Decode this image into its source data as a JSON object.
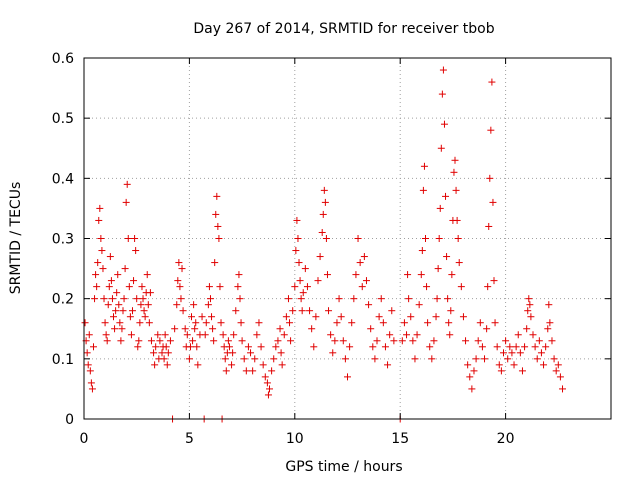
{
  "chart_data": {
    "type": "scatter",
    "title": "Day 267 of 2014, SRMTID for receiver tbob",
    "xlabel": "GPS time / hours",
    "ylabel": "SRMTID / TECUs",
    "xlim": [
      0,
      25
    ],
    "ylim": [
      0,
      0.6
    ],
    "xticks": [
      0,
      5,
      10,
      15,
      20
    ],
    "xtick_labels": [
      "0",
      "5",
      "10",
      "15",
      "20"
    ],
    "yticks": [
      0,
      0.1,
      0.2,
      0.3,
      0.4,
      0.5,
      0.6
    ],
    "ytick_labels": [
      "0",
      "0.1",
      "0.2",
      "0.3",
      "0.4",
      "0.5",
      "0.6"
    ],
    "grid": true,
    "marker": "plus",
    "color": "#e00000",
    "series": [
      {
        "name": "SRMTID",
        "points": [
          [
            0.05,
            0.16
          ],
          [
            0.1,
            0.13
          ],
          [
            0.15,
            0.11
          ],
          [
            0.2,
            0.09
          ],
          [
            0.25,
            0.14
          ],
          [
            0.3,
            0.08
          ],
          [
            0.35,
            0.06
          ],
          [
            0.4,
            0.05
          ],
          [
            0.45,
            0.12
          ],
          [
            0.5,
            0.2
          ],
          [
            0.55,
            0.24
          ],
          [
            0.6,
            0.22
          ],
          [
            0.65,
            0.26
          ],
          [
            0.7,
            0.33
          ],
          [
            0.75,
            0.35
          ],
          [
            0.8,
            0.3
          ],
          [
            0.85,
            0.28
          ],
          [
            0.9,
            0.25
          ],
          [
            0.95,
            0.2
          ],
          [
            1.0,
            0.16
          ],
          [
            1.05,
            0.14
          ],
          [
            1.1,
            0.13
          ],
          [
            1.15,
            0.19
          ],
          [
            1.2,
            0.22
          ],
          [
            1.25,
            0.27
          ],
          [
            1.3,
            0.23
          ],
          [
            1.35,
            0.2
          ],
          [
            1.4,
            0.17
          ],
          [
            1.45,
            0.15
          ],
          [
            1.5,
            0.18
          ],
          [
            1.55,
            0.21
          ],
          [
            1.6,
            0.24
          ],
          [
            1.65,
            0.19
          ],
          [
            1.7,
            0.16
          ],
          [
            1.75,
            0.13
          ],
          [
            1.8,
            0.15
          ],
          [
            1.85,
            0.18
          ],
          [
            1.9,
            0.2
          ],
          [
            1.95,
            0.25
          ],
          [
            2.0,
            0.36
          ],
          [
            2.05,
            0.39
          ],
          [
            2.1,
            0.3
          ],
          [
            2.15,
            0.22
          ],
          [
            2.2,
            0.17
          ],
          [
            2.25,
            0.14
          ],
          [
            2.3,
            0.18
          ],
          [
            2.35,
            0.23
          ],
          [
            2.4,
            0.3
          ],
          [
            2.45,
            0.28
          ],
          [
            2.5,
            0.2
          ],
          [
            2.55,
            0.12
          ],
          [
            2.6,
            0.13
          ],
          [
            2.65,
            0.16
          ],
          [
            2.7,
            0.19
          ],
          [
            2.75,
            0.22
          ],
          [
            2.8,
            0.2
          ],
          [
            2.85,
            0.18
          ],
          [
            2.9,
            0.17
          ],
          [
            2.95,
            0.21
          ],
          [
            3.0,
            0.24
          ],
          [
            3.05,
            0.19
          ],
          [
            3.1,
            0.16
          ],
          [
            3.15,
            0.21
          ],
          [
            3.2,
            0.13
          ],
          [
            3.3,
            0.11
          ],
          [
            3.35,
            0.09
          ],
          [
            3.4,
            0.12
          ],
          [
            3.5,
            0.14
          ],
          [
            3.55,
            0.1
          ],
          [
            3.6,
            0.13
          ],
          [
            3.7,
            0.11
          ],
          [
            3.75,
            0.12
          ],
          [
            3.8,
            0.1
          ],
          [
            3.85,
            0.14
          ],
          [
            3.9,
            0.12
          ],
          [
            3.95,
            0.09
          ],
          [
            4.0,
            0.11
          ],
          [
            4.1,
            0.13
          ],
          [
            4.2,
            0.0
          ],
          [
            4.3,
            0.15
          ],
          [
            4.4,
            0.19
          ],
          [
            4.45,
            0.23
          ],
          [
            4.5,
            0.26
          ],
          [
            4.55,
            0.22
          ],
          [
            4.6,
            0.2
          ],
          [
            4.65,
            0.25
          ],
          [
            4.7,
            0.18
          ],
          [
            4.8,
            0.15
          ],
          [
            4.85,
            0.12
          ],
          [
            4.9,
            0.14
          ],
          [
            5.0,
            0.1
          ],
          [
            5.05,
            0.12
          ],
          [
            5.1,
            0.17
          ],
          [
            5.15,
            0.13
          ],
          [
            5.2,
            0.19
          ],
          [
            5.25,
            0.15
          ],
          [
            5.3,
            0.16
          ],
          [
            5.35,
            0.12
          ],
          [
            5.4,
            0.09
          ],
          [
            5.5,
            0.14
          ],
          [
            5.6,
            0.17
          ],
          [
            5.7,
            0.0
          ],
          [
            5.75,
            0.14
          ],
          [
            5.8,
            0.16
          ],
          [
            5.9,
            0.19
          ],
          [
            5.95,
            0.22
          ],
          [
            6.0,
            0.2
          ],
          [
            6.05,
            0.17
          ],
          [
            6.1,
            0.15
          ],
          [
            6.15,
            0.13
          ],
          [
            6.2,
            0.26
          ],
          [
            6.25,
            0.34
          ],
          [
            6.3,
            0.37
          ],
          [
            6.35,
            0.32
          ],
          [
            6.4,
            0.3
          ],
          [
            6.45,
            0.22
          ],
          [
            6.5,
            0.16
          ],
          [
            6.55,
            0.0
          ],
          [
            6.6,
            0.14
          ],
          [
            6.65,
            0.12
          ],
          [
            6.7,
            0.1
          ],
          [
            6.75,
            0.08
          ],
          [
            6.8,
            0.11
          ],
          [
            6.85,
            0.13
          ],
          [
            6.9,
            0.12
          ],
          [
            7.0,
            0.09
          ],
          [
            7.05,
            0.11
          ],
          [
            7.1,
            0.14
          ],
          [
            7.2,
            0.18
          ],
          [
            7.3,
            0.22
          ],
          [
            7.35,
            0.24
          ],
          [
            7.4,
            0.2
          ],
          [
            7.45,
            0.16
          ],
          [
            7.5,
            0.13
          ],
          [
            7.6,
            0.1
          ],
          [
            7.7,
            0.08
          ],
          [
            7.8,
            0.12
          ],
          [
            7.9,
            0.11
          ],
          [
            8.0,
            0.08
          ],
          [
            8.1,
            0.1
          ],
          [
            8.2,
            0.14
          ],
          [
            8.3,
            0.16
          ],
          [
            8.4,
            0.12
          ],
          [
            8.5,
            0.09
          ],
          [
            8.6,
            0.07
          ],
          [
            8.7,
            0.06
          ],
          [
            8.75,
            0.04
          ],
          [
            8.8,
            0.05
          ],
          [
            8.9,
            0.08
          ],
          [
            9.0,
            0.1
          ],
          [
            9.1,
            0.12
          ],
          [
            9.2,
            0.13
          ],
          [
            9.3,
            0.15
          ],
          [
            9.35,
            0.11
          ],
          [
            9.4,
            0.09
          ],
          [
            9.5,
            0.14
          ],
          [
            9.6,
            0.17
          ],
          [
            9.7,
            0.2
          ],
          [
            9.75,
            0.16
          ],
          [
            9.8,
            0.13
          ],
          [
            9.9,
            0.18
          ],
          [
            10.0,
            0.22
          ],
          [
            10.05,
            0.28
          ],
          [
            10.1,
            0.33
          ],
          [
            10.15,
            0.3
          ],
          [
            10.2,
            0.26
          ],
          [
            10.25,
            0.23
          ],
          [
            10.3,
            0.2
          ],
          [
            10.35,
            0.18
          ],
          [
            10.4,
            0.21
          ],
          [
            10.5,
            0.25
          ],
          [
            10.6,
            0.22
          ],
          [
            10.7,
            0.18
          ],
          [
            10.8,
            0.15
          ],
          [
            10.9,
            0.12
          ],
          [
            11.0,
            0.17
          ],
          [
            11.1,
            0.23
          ],
          [
            11.2,
            0.27
          ],
          [
            11.3,
            0.31
          ],
          [
            11.35,
            0.34
          ],
          [
            11.4,
            0.38
          ],
          [
            11.45,
            0.36
          ],
          [
            11.5,
            0.3
          ],
          [
            11.55,
            0.24
          ],
          [
            11.6,
            0.18
          ],
          [
            11.7,
            0.14
          ],
          [
            11.8,
            0.11
          ],
          [
            11.9,
            0.13
          ],
          [
            12.0,
            0.16
          ],
          [
            12.1,
            0.2
          ],
          [
            12.2,
            0.17
          ],
          [
            12.3,
            0.13
          ],
          [
            12.4,
            0.1
          ],
          [
            12.5,
            0.07
          ],
          [
            12.6,
            0.12
          ],
          [
            12.7,
            0.16
          ],
          [
            12.8,
            0.2
          ],
          [
            12.9,
            0.24
          ],
          [
            13.0,
            0.3
          ],
          [
            13.1,
            0.26
          ],
          [
            13.2,
            0.22
          ],
          [
            13.3,
            0.27
          ],
          [
            13.4,
            0.23
          ],
          [
            13.5,
            0.19
          ],
          [
            13.6,
            0.15
          ],
          [
            13.7,
            0.12
          ],
          [
            13.8,
            0.1
          ],
          [
            13.9,
            0.13
          ],
          [
            14.0,
            0.17
          ],
          [
            14.1,
            0.2
          ],
          [
            14.2,
            0.16
          ],
          [
            14.3,
            0.12
          ],
          [
            14.4,
            0.09
          ],
          [
            14.5,
            0.14
          ],
          [
            14.6,
            0.18
          ],
          [
            14.7,
            0.13
          ],
          [
            15.0,
            0.0
          ],
          [
            15.1,
            0.13
          ],
          [
            15.2,
            0.16
          ],
          [
            15.3,
            0.14
          ],
          [
            15.35,
            0.24
          ],
          [
            15.4,
            0.2
          ],
          [
            15.5,
            0.17
          ],
          [
            15.6,
            0.13
          ],
          [
            15.7,
            0.1
          ],
          [
            15.8,
            0.14
          ],
          [
            15.9,
            0.19
          ],
          [
            16.0,
            0.24
          ],
          [
            16.05,
            0.28
          ],
          [
            16.1,
            0.38
          ],
          [
            16.15,
            0.42
          ],
          [
            16.2,
            0.3
          ],
          [
            16.25,
            0.22
          ],
          [
            16.3,
            0.16
          ],
          [
            16.4,
            0.12
          ],
          [
            16.5,
            0.1
          ],
          [
            16.6,
            0.13
          ],
          [
            16.7,
            0.17
          ],
          [
            16.75,
            0.2
          ],
          [
            16.8,
            0.25
          ],
          [
            16.85,
            0.3
          ],
          [
            16.9,
            0.35
          ],
          [
            16.95,
            0.45
          ],
          [
            17.0,
            0.54
          ],
          [
            17.05,
            0.58
          ],
          [
            17.1,
            0.49
          ],
          [
            17.15,
            0.37
          ],
          [
            17.2,
            0.27
          ],
          [
            17.25,
            0.2
          ],
          [
            17.3,
            0.16
          ],
          [
            17.35,
            0.14
          ],
          [
            17.4,
            0.18
          ],
          [
            17.45,
            0.24
          ],
          [
            17.5,
            0.33
          ],
          [
            17.55,
            0.41
          ],
          [
            17.6,
            0.43
          ],
          [
            17.65,
            0.38
          ],
          [
            17.7,
            0.33
          ],
          [
            17.75,
            0.3
          ],
          [
            17.8,
            0.26
          ],
          [
            17.9,
            0.22
          ],
          [
            18.0,
            0.17
          ],
          [
            18.1,
            0.13
          ],
          [
            18.2,
            0.09
          ],
          [
            18.3,
            0.07
          ],
          [
            18.4,
            0.05
          ],
          [
            18.5,
            0.08
          ],
          [
            18.6,
            0.1
          ],
          [
            18.7,
            0.13
          ],
          [
            18.8,
            0.16
          ],
          [
            18.9,
            0.12
          ],
          [
            19.0,
            0.1
          ],
          [
            19.1,
            0.15
          ],
          [
            19.15,
            0.22
          ],
          [
            19.2,
            0.32
          ],
          [
            19.25,
            0.4
          ],
          [
            19.3,
            0.48
          ],
          [
            19.35,
            0.56
          ],
          [
            19.4,
            0.36
          ],
          [
            19.45,
            0.23
          ],
          [
            19.5,
            0.16
          ],
          [
            19.6,
            0.12
          ],
          [
            19.7,
            0.09
          ],
          [
            19.8,
            0.08
          ],
          [
            19.9,
            0.11
          ],
          [
            20.0,
            0.13
          ],
          [
            20.1,
            0.1
          ],
          [
            20.2,
            0.12
          ],
          [
            20.3,
            0.11
          ],
          [
            20.4,
            0.09
          ],
          [
            20.5,
            0.12
          ],
          [
            20.6,
            0.14
          ],
          [
            20.7,
            0.11
          ],
          [
            20.8,
            0.08
          ],
          [
            20.9,
            0.12
          ],
          [
            21.0,
            0.15
          ],
          [
            21.05,
            0.18
          ],
          [
            21.1,
            0.2
          ],
          [
            21.15,
            0.19
          ],
          [
            21.2,
            0.17
          ],
          [
            21.3,
            0.14
          ],
          [
            21.4,
            0.12
          ],
          [
            21.5,
            0.1
          ],
          [
            21.6,
            0.13
          ],
          [
            21.7,
            0.11
          ],
          [
            21.8,
            0.09
          ],
          [
            21.9,
            0.12
          ],
          [
            22.0,
            0.15
          ],
          [
            22.05,
            0.19
          ],
          [
            22.1,
            0.16
          ],
          [
            22.2,
            0.13
          ],
          [
            22.3,
            0.1
          ],
          [
            22.4,
            0.08
          ],
          [
            22.5,
            0.09
          ],
          [
            22.6,
            0.07
          ],
          [
            22.7,
            0.05
          ]
        ]
      }
    ]
  }
}
